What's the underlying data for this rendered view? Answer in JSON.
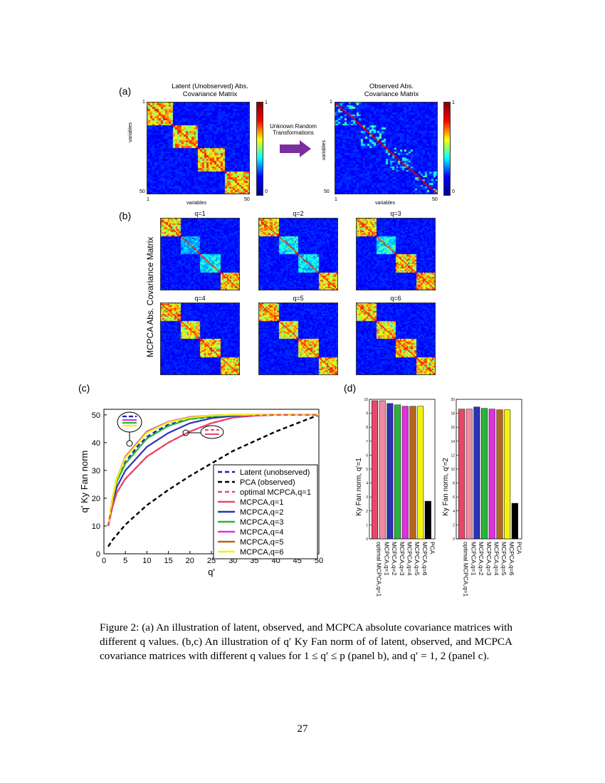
{
  "figure": {
    "panel_a": {
      "label": "(a)",
      "latent": {
        "title_line1": "Latent (Unobserved) Abs.",
        "title_line2": "Covariance Matrix",
        "xlabel": "variables",
        "ylabel": "variables",
        "tick_min": "1",
        "tick_max": "50",
        "cbar_max": "1",
        "cbar_min": "0"
      },
      "observed": {
        "title_line1": "Observed Abs.",
        "title_line2": "Covariance Matrix",
        "xlabel": "variables",
        "ylabel": "variables",
        "tick_min": "1",
        "tick_max": "50",
        "cbar_max": "1",
        "cbar_min": "0"
      },
      "arrow_line1": "Unknown Random",
      "arrow_line2": "Transformations",
      "arrow_color": "#7b2f9e"
    },
    "panel_b": {
      "label": "(b)",
      "ylabel": "MCPCA Abs. Covariance Matrix",
      "titles": [
        "q=1",
        "q=2",
        "q=3",
        "q=4",
        "q=5",
        "q=6"
      ]
    },
    "panel_c": {
      "label": "(c)",
      "xlabel": "q'",
      "ylabel": "q' Ky Fan norm",
      "xticks": [
        "0",
        "5",
        "10",
        "15",
        "20",
        "25",
        "30",
        "35",
        "40",
        "45",
        "50"
      ],
      "yticks": [
        "0",
        "10",
        "20",
        "30",
        "40",
        "50"
      ]
    },
    "panel_d": {
      "label": "(d)",
      "ylabel_left": "Ky Fan norm, q'=1",
      "ylabel_right": "Ky Fan norm, q'=2"
    }
  },
  "chart_data": [
    {
      "type": "line",
      "panel": "c",
      "xlabel": "q'",
      "ylabel": "q' Ky Fan norm",
      "xlim": [
        0,
        50
      ],
      "ylim": [
        0,
        52
      ],
      "legend_position": "bottom-right",
      "grid": false,
      "series": [
        {
          "name": "Latent (unobserved)",
          "color": "#1f1fa8",
          "dash": "dash",
          "x": [
            1,
            2,
            3,
            4,
            5,
            6,
            8,
            10,
            12,
            15,
            20,
            25,
            30,
            35,
            40,
            45,
            50
          ],
          "y": [
            10,
            20,
            26,
            30,
            33,
            35,
            39,
            42,
            44,
            46.5,
            48.5,
            49.3,
            49.7,
            49.9,
            50,
            50,
            50
          ]
        },
        {
          "name": "PCA (observed)",
          "color": "#000000",
          "dash": "dash",
          "x": [
            1,
            2,
            5,
            10,
            15,
            20,
            25,
            30,
            35,
            40,
            45,
            50
          ],
          "y": [
            2.6,
            5,
            10.5,
            17.5,
            23,
            28,
            32.5,
            37,
            40.5,
            44,
            47,
            50
          ]
        },
        {
          "name": "optimal MCPCA,q=1",
          "color": "#e8476b",
          "dash": "dash",
          "x": [
            1,
            2,
            3,
            5,
            10,
            15,
            20,
            25,
            30,
            35,
            40,
            45,
            50
          ],
          "y": [
            10,
            17,
            22,
            27,
            35,
            40,
            44,
            47,
            49,
            49.7,
            50,
            50,
            50
          ]
        },
        {
          "name": "MCPCA,q=1",
          "color": "#e8476b",
          "dash": "solid",
          "x": [
            1,
            2,
            3,
            5,
            10,
            15,
            20,
            25,
            30,
            35,
            40,
            45,
            50
          ],
          "y": [
            10,
            17,
            22,
            27,
            35,
            40,
            44,
            47,
            49,
            49.7,
            50,
            50,
            50
          ]
        },
        {
          "name": "MCPCA,q=2",
          "color": "#2b33b5",
          "dash": "solid",
          "x": [
            1,
            2,
            3,
            5,
            10,
            15,
            20,
            25,
            30,
            35,
            40,
            45,
            50
          ],
          "y": [
            10,
            18.5,
            24,
            30,
            38.5,
            43.5,
            47,
            48.8,
            49.6,
            49.9,
            50,
            50,
            50
          ]
        },
        {
          "name": "MCPCA,q=3",
          "color": "#2bb33b",
          "dash": "solid",
          "x": [
            1,
            2,
            3,
            5,
            10,
            15,
            20,
            25,
            30,
            35,
            40,
            45,
            50
          ],
          "y": [
            10,
            19.5,
            26,
            32.5,
            41.5,
            46,
            48.5,
            49.5,
            49.9,
            50,
            50,
            50,
            50
          ]
        },
        {
          "name": "MCPCA,q=4",
          "color": "#e22fe2",
          "dash": "solid",
          "x": [
            1,
            2,
            3,
            5,
            10,
            15,
            20,
            25,
            30,
            35,
            40,
            45,
            50
          ],
          "y": [
            10,
            20,
            27,
            35,
            44,
            47.5,
            49.2,
            49.8,
            50,
            50,
            50,
            50,
            50
          ]
        },
        {
          "name": "MCPCA,q=5",
          "color": "#b5651d",
          "dash": "solid",
          "x": [
            1,
            2,
            3,
            5,
            10,
            15,
            20,
            25,
            30,
            35,
            40,
            45,
            50
          ],
          "y": [
            10,
            20,
            27,
            34.8,
            43.8,
            47.4,
            49.1,
            49.8,
            50,
            50,
            50,
            50,
            50
          ]
        },
        {
          "name": "MCPCA,q=6",
          "color": "#f2f20f",
          "dash": "solid",
          "x": [
            1,
            2,
            3,
            5,
            10,
            15,
            20,
            25,
            30,
            35,
            40,
            45,
            50
          ],
          "y": [
            10,
            20,
            27,
            34.6,
            43.6,
            47.3,
            49,
            49.8,
            50,
            50,
            50,
            50,
            50
          ]
        }
      ]
    },
    {
      "type": "bar",
      "panel": "d-left",
      "ylabel": "Ky Fan norm, q'=1",
      "ylim": [
        0,
        10
      ],
      "yticks": [
        "0",
        "1",
        "2",
        "3",
        "4",
        "5",
        "6",
        "7",
        "8",
        "9",
        "10"
      ],
      "categories": [
        "optimal MCPCA,q=1",
        "MCPCA,q=1",
        "MCPCA,q=2",
        "MCPCA,q=3",
        "MCPCA,q=4",
        "MCPCA,q=5",
        "MCPCA,q=6",
        "PCA"
      ],
      "values": [
        9.9,
        9.9,
        9.7,
        9.6,
        9.5,
        9.5,
        9.5,
        2.7
      ],
      "colors": [
        "#e8476b",
        "#f08aa2",
        "#2b33b5",
        "#2bb33b",
        "#e22fe2",
        "#b5651d",
        "#f2f20f",
        "#000000"
      ]
    },
    {
      "type": "bar",
      "panel": "d-right",
      "ylabel": "Ky Fan norm, q'=2",
      "ylim": [
        0,
        20
      ],
      "yticks": [
        "0",
        "2",
        "4",
        "6",
        "8",
        "10",
        "12",
        "14",
        "16",
        "18",
        "20"
      ],
      "categories": [
        "optimal MCPCA,q=1",
        "MCPCA,q=1",
        "MCPCA,q=2",
        "MCPCA,q=3",
        "MCPCA,q=4",
        "MCPCA,q=5",
        "MCPCA,q=6",
        "PCA"
      ],
      "values": [
        18.6,
        18.6,
        18.9,
        18.7,
        18.6,
        18.5,
        18.5,
        5.1
      ],
      "colors": [
        "#e8476b",
        "#f08aa2",
        "#2b33b5",
        "#2bb33b",
        "#e22fe2",
        "#b5651d",
        "#f2f20f",
        "#000000"
      ]
    }
  ],
  "caption": "Figure 2: (a) An illustration of latent, observed, and MCPCA absolute covariance matrices with different q values. (b,c) An illustration of q′ Ky Fan norm of of latent, observed, and MCPCA covariance matrices with different q values for 1 ≤ q′ ≤ p (panel b), and q′ = 1, 2 (panel c).",
  "page_number": "27"
}
